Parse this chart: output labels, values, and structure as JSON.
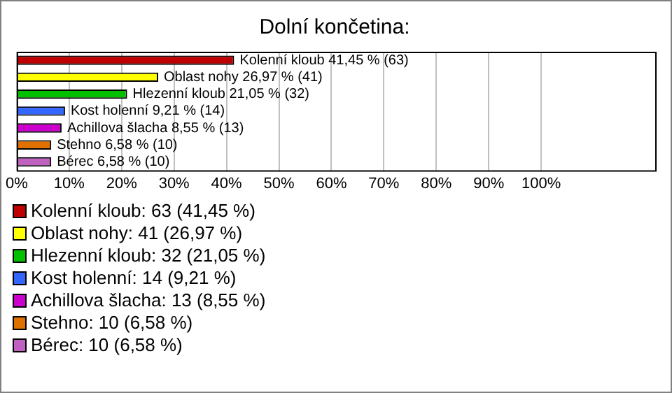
{
  "chart_data": {
    "type": "bar",
    "orientation": "horizontal",
    "title": "Dolní končetina:",
    "categories": [
      null,
      null,
      null,
      null,
      null,
      null,
      null
    ],
    "values": [
      41.45,
      26.97,
      21.05,
      9.21,
      8.55,
      6.58,
      6.58
    ],
    "colors": [
      "#c00000",
      "#ffff00",
      "#00c000",
      "#3366ff",
      "#cc00cc",
      "#e07000",
      "#c060c0"
    ],
    "value_labels": [
      "Kolenní kloub 41,45 % (63)",
      "Oblast nohy 26,97 % (41)",
      "Hlezenní kloub 21,05 % (32)",
      "Kost holenní 9,21 % (14)",
      "Achillova šlacha 8,55 % (13)",
      "Stehno 6,58 % (10)",
      "Bérec 6,58 % (10)"
    ],
    "xlim": [
      0,
      122
    ],
    "xticks": [
      {
        "value": 0,
        "label": "0%"
      },
      {
        "value": 10,
        "label": "10%"
      },
      {
        "value": 20,
        "label": "20%"
      },
      {
        "value": 30,
        "label": "30%"
      },
      {
        "value": 40,
        "label": "40%"
      },
      {
        "value": 50,
        "label": "50%"
      },
      {
        "value": 60,
        "label": "60%"
      },
      {
        "value": 70,
        "label": "70%"
      },
      {
        "value": 80,
        "label": "80%"
      },
      {
        "value": 90,
        "label": "90%"
      },
      {
        "value": 100,
        "label": "100%"
      }
    ],
    "grid": "x",
    "tick_labels": "x",
    "annotations": [
      "Kolenní kloub: 63 (41,45 %)",
      "Oblast nohy: 41 (26,97 %)",
      "Hlezenní kloub: 32 (21,05 %)",
      "Kost holenní: 14 (9,21 %)",
      "Achillova šlacha: 13 (8,55 %)",
      "Stehno: 10 (6,58 %)",
      "Bérec: 10 (6,58 %)"
    ]
  }
}
